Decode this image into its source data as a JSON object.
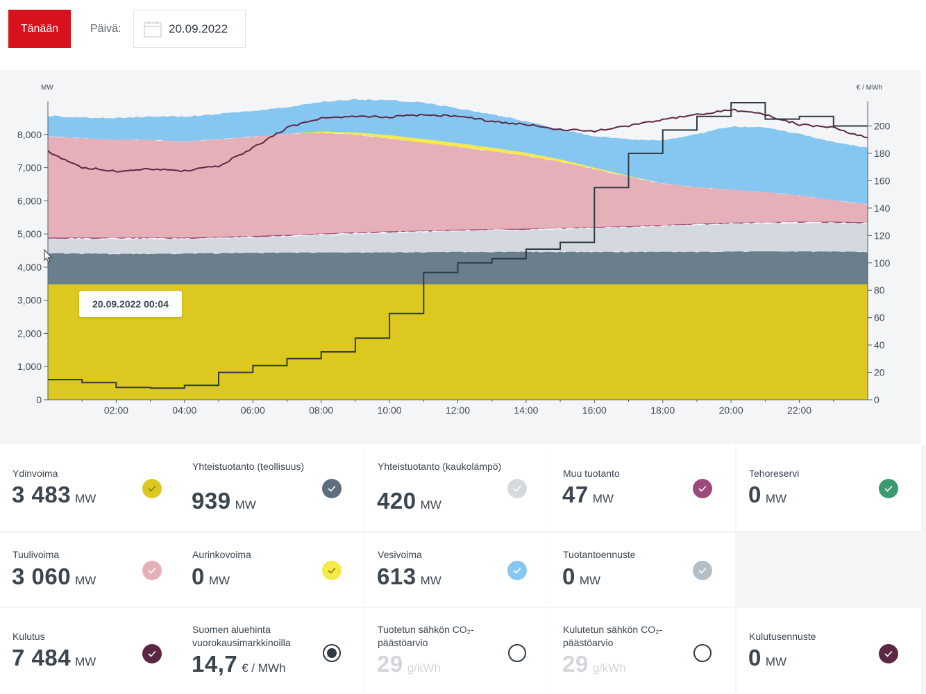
{
  "toolbar": {
    "today_label": "Tänään",
    "date_label": "Päivä:",
    "date_value": "20.09.2022"
  },
  "tooltip": "20.09.2022 00:04",
  "chart_data": {
    "type": "area",
    "y_left_unit": "MW",
    "y_right_unit": "€ / MWh",
    "y_left_ticks": [
      "0",
      "1,000",
      "2,000",
      "3,000",
      "4,000",
      "5,000",
      "6,000",
      "7,000",
      "8,000"
    ],
    "y_right_ticks": [
      "0",
      "20",
      "40",
      "60",
      "80",
      "100",
      "120",
      "140",
      "160",
      "180",
      "200"
    ],
    "x_ticks": [
      "02:00",
      "04:00",
      "06:00",
      "08:00",
      "10:00",
      "12:00",
      "14:00",
      "16:00",
      "18:00",
      "20:00",
      "22:00"
    ],
    "ylim_left": [
      0,
      9000
    ],
    "ylim_right": [
      0,
      218
    ],
    "xlim_hours": [
      0,
      24
    ],
    "colors": {
      "nuclear": "#dcc81e",
      "chp_industry": "#6b7e8c",
      "chp_district": "#d3d9de",
      "other": "#9c4a7c",
      "wind": "#e6b0b9",
      "solar": "#f5ea4a",
      "hydro": "#86c7f2",
      "consumption": "#5c2742",
      "price": "#2f3a45"
    },
    "hours": [
      0,
      1,
      2,
      3,
      4,
      5,
      6,
      7,
      8,
      9,
      10,
      11,
      12,
      13,
      14,
      15,
      16,
      17,
      18,
      19,
      20,
      21,
      22,
      23,
      24
    ],
    "series": [
      {
        "name": "Ydinvoima",
        "values": [
          3483,
          3483,
          3483,
          3483,
          3483,
          3483,
          3483,
          3483,
          3483,
          3483,
          3483,
          3483,
          3483,
          3483,
          3483,
          3483,
          3483,
          3483,
          3483,
          3483,
          3483,
          3483,
          3483,
          3483,
          3483
        ]
      },
      {
        "name": "Yhteistuotanto (teollisuus)",
        "values": [
          939,
          930,
          920,
          920,
          930,
          940,
          950,
          960,
          960,
          960,
          970,
          970,
          980,
          980,
          980,
          980,
          980,
          980,
          980,
          980,
          990,
          990,
          990,
          990,
          980
        ]
      },
      {
        "name": "Yhteistuotanto (kaukolämpö)",
        "values": [
          420,
          430,
          440,
          440,
          430,
          440,
          460,
          480,
          520,
          560,
          580,
          600,
          620,
          640,
          650,
          670,
          700,
          720,
          760,
          800,
          820,
          840,
          850,
          850,
          840
        ]
      },
      {
        "name": "Muu tuotanto",
        "values": [
          47,
          47,
          47,
          47,
          47,
          47,
          47,
          47,
          47,
          47,
          47,
          47,
          47,
          47,
          47,
          47,
          47,
          47,
          47,
          47,
          47,
          47,
          47,
          47,
          47
        ]
      },
      {
        "name": "Tuulivoima",
        "values": [
          3060,
          3000,
          2950,
          2950,
          2900,
          2950,
          3000,
          3050,
          3050,
          2950,
          2800,
          2650,
          2500,
          2350,
          2200,
          2000,
          1750,
          1500,
          1250,
          1100,
          1000,
          900,
          800,
          650,
          550
        ]
      },
      {
        "name": "Aurinkovoima",
        "values": [
          0,
          0,
          0,
          0,
          0,
          0,
          0,
          0,
          30,
          60,
          100,
          110,
          110,
          100,
          90,
          70,
          40,
          20,
          5,
          0,
          0,
          0,
          0,
          0,
          0
        ]
      },
      {
        "name": "Vesivoima",
        "values": [
          613,
          620,
          660,
          700,
          750,
          760,
          770,
          800,
          900,
          1000,
          1050,
          1100,
          1050,
          1000,
          950,
          900,
          950,
          1100,
          1300,
          1600,
          1900,
          1950,
          1850,
          1750,
          1700
        ]
      },
      {
        "name": "Kulutus",
        "values": [
          7484,
          7000,
          6900,
          6950,
          6900,
          7050,
          7600,
          8200,
          8500,
          8550,
          8520,
          8600,
          8550,
          8400,
          8300,
          8150,
          8100,
          8250,
          8450,
          8600,
          8750,
          8600,
          8300,
          8200,
          7900
        ]
      }
    ],
    "price_steps": [
      {
        "from": 0,
        "to": 1,
        "value": 14.7
      },
      {
        "from": 1,
        "to": 2,
        "value": 12.5
      },
      {
        "from": 2,
        "to": 3,
        "value": 9.0
      },
      {
        "from": 3,
        "to": 4,
        "value": 8.5
      },
      {
        "from": 4,
        "to": 5,
        "value": 10.5
      },
      {
        "from": 5,
        "to": 6,
        "value": 20.0
      },
      {
        "from": 6,
        "to": 7,
        "value": 25.0
      },
      {
        "from": 7,
        "to": 8,
        "value": 30.0
      },
      {
        "from": 8,
        "to": 9,
        "value": 35.0
      },
      {
        "from": 9,
        "to": 10,
        "value": 45.0
      },
      {
        "from": 10,
        "to": 11,
        "value": 63.0
      },
      {
        "from": 11,
        "to": 12,
        "value": 93.0
      },
      {
        "from": 12,
        "to": 13,
        "value": 100.0
      },
      {
        "from": 13,
        "to": 14,
        "value": 103.0
      },
      {
        "from": 14,
        "to": 15,
        "value": 110.0
      },
      {
        "from": 15,
        "to": 16,
        "value": 115.0
      },
      {
        "from": 16,
        "to": 17,
        "value": 155.0
      },
      {
        "from": 17,
        "to": 18,
        "value": 180.0
      },
      {
        "from": 18,
        "to": 19,
        "value": 197.0
      },
      {
        "from": 19,
        "to": 20,
        "value": 207.0
      },
      {
        "from": 20,
        "to": 21,
        "value": 217.0
      },
      {
        "from": 21,
        "to": 22,
        "value": 205.0
      },
      {
        "from": 22,
        "to": 23,
        "value": 207.0
      },
      {
        "from": 23,
        "to": 24,
        "value": 200.0
      }
    ]
  },
  "cards": [
    {
      "key": "nuclear",
      "label": "Ydinvoima",
      "value": "3 483",
      "unit": "MW",
      "color": "#dcc81e",
      "indicator": "check"
    },
    {
      "key": "chp_industry",
      "label": "Yhteistuotanto (teollisuus)",
      "value": "939",
      "unit": "MW",
      "color": "#5d6f7c",
      "indicator": "check"
    },
    {
      "key": "chp_district",
      "label": "Yhteistuotanto (kaukolämpö)",
      "value": "420",
      "unit": "MW",
      "color": "#d3d9de",
      "indicator": "check"
    },
    {
      "key": "other",
      "label": "Muu tuotanto",
      "value": "47",
      "unit": "MW",
      "color": "#9c4a7c",
      "indicator": "check"
    },
    {
      "key": "reserve",
      "label": "Tehoreservi",
      "value": "0",
      "unit": "MW",
      "color": "#3c9a6e",
      "indicator": "check"
    },
    {
      "key": "wind",
      "label": "Tuulivoima",
      "value": "3 060",
      "unit": "MW",
      "color": "#e6b0b9",
      "indicator": "check"
    },
    {
      "key": "solar",
      "label": "Aurinkovoima",
      "value": "0",
      "unit": "MW",
      "color": "#f5ea4a",
      "indicator": "check"
    },
    {
      "key": "hydro",
      "label": "Vesivoima",
      "value": "613",
      "unit": "MW",
      "color": "#86c7f2",
      "indicator": "check"
    },
    {
      "key": "prod_forecast",
      "label": "Tuotantoennuste",
      "value": "0",
      "unit": "MW",
      "color": "#b4bec6",
      "indicator": "check"
    },
    {
      "key": "consumption",
      "label": "Kulutus",
      "value": "7 484",
      "unit": "MW",
      "color": "#5c2742",
      "indicator": "check"
    },
    {
      "key": "price",
      "label": "Suomen aluehinta vuorokausimarkkinoilla",
      "value": "14,7",
      "unit": "€ / MWh",
      "color": "#2f3a45",
      "indicator": "radio"
    },
    {
      "key": "co2_prod",
      "label": "Tuotetun sähkön CO₂-päästöarvio",
      "value": "29",
      "unit": "g/kWh",
      "color": "#2f3a45",
      "indicator": "ring"
    },
    {
      "key": "co2_cons",
      "label": "Kulutetun sähkön CO₂-päästöarvio",
      "value": "29",
      "unit": "g/kWh",
      "color": "#2f3a45",
      "indicator": "ring"
    },
    {
      "key": "cons_forecast",
      "label": "Kulutusennuste",
      "value": "0",
      "unit": "MW",
      "color": "#5c2742",
      "indicator": "check"
    }
  ]
}
